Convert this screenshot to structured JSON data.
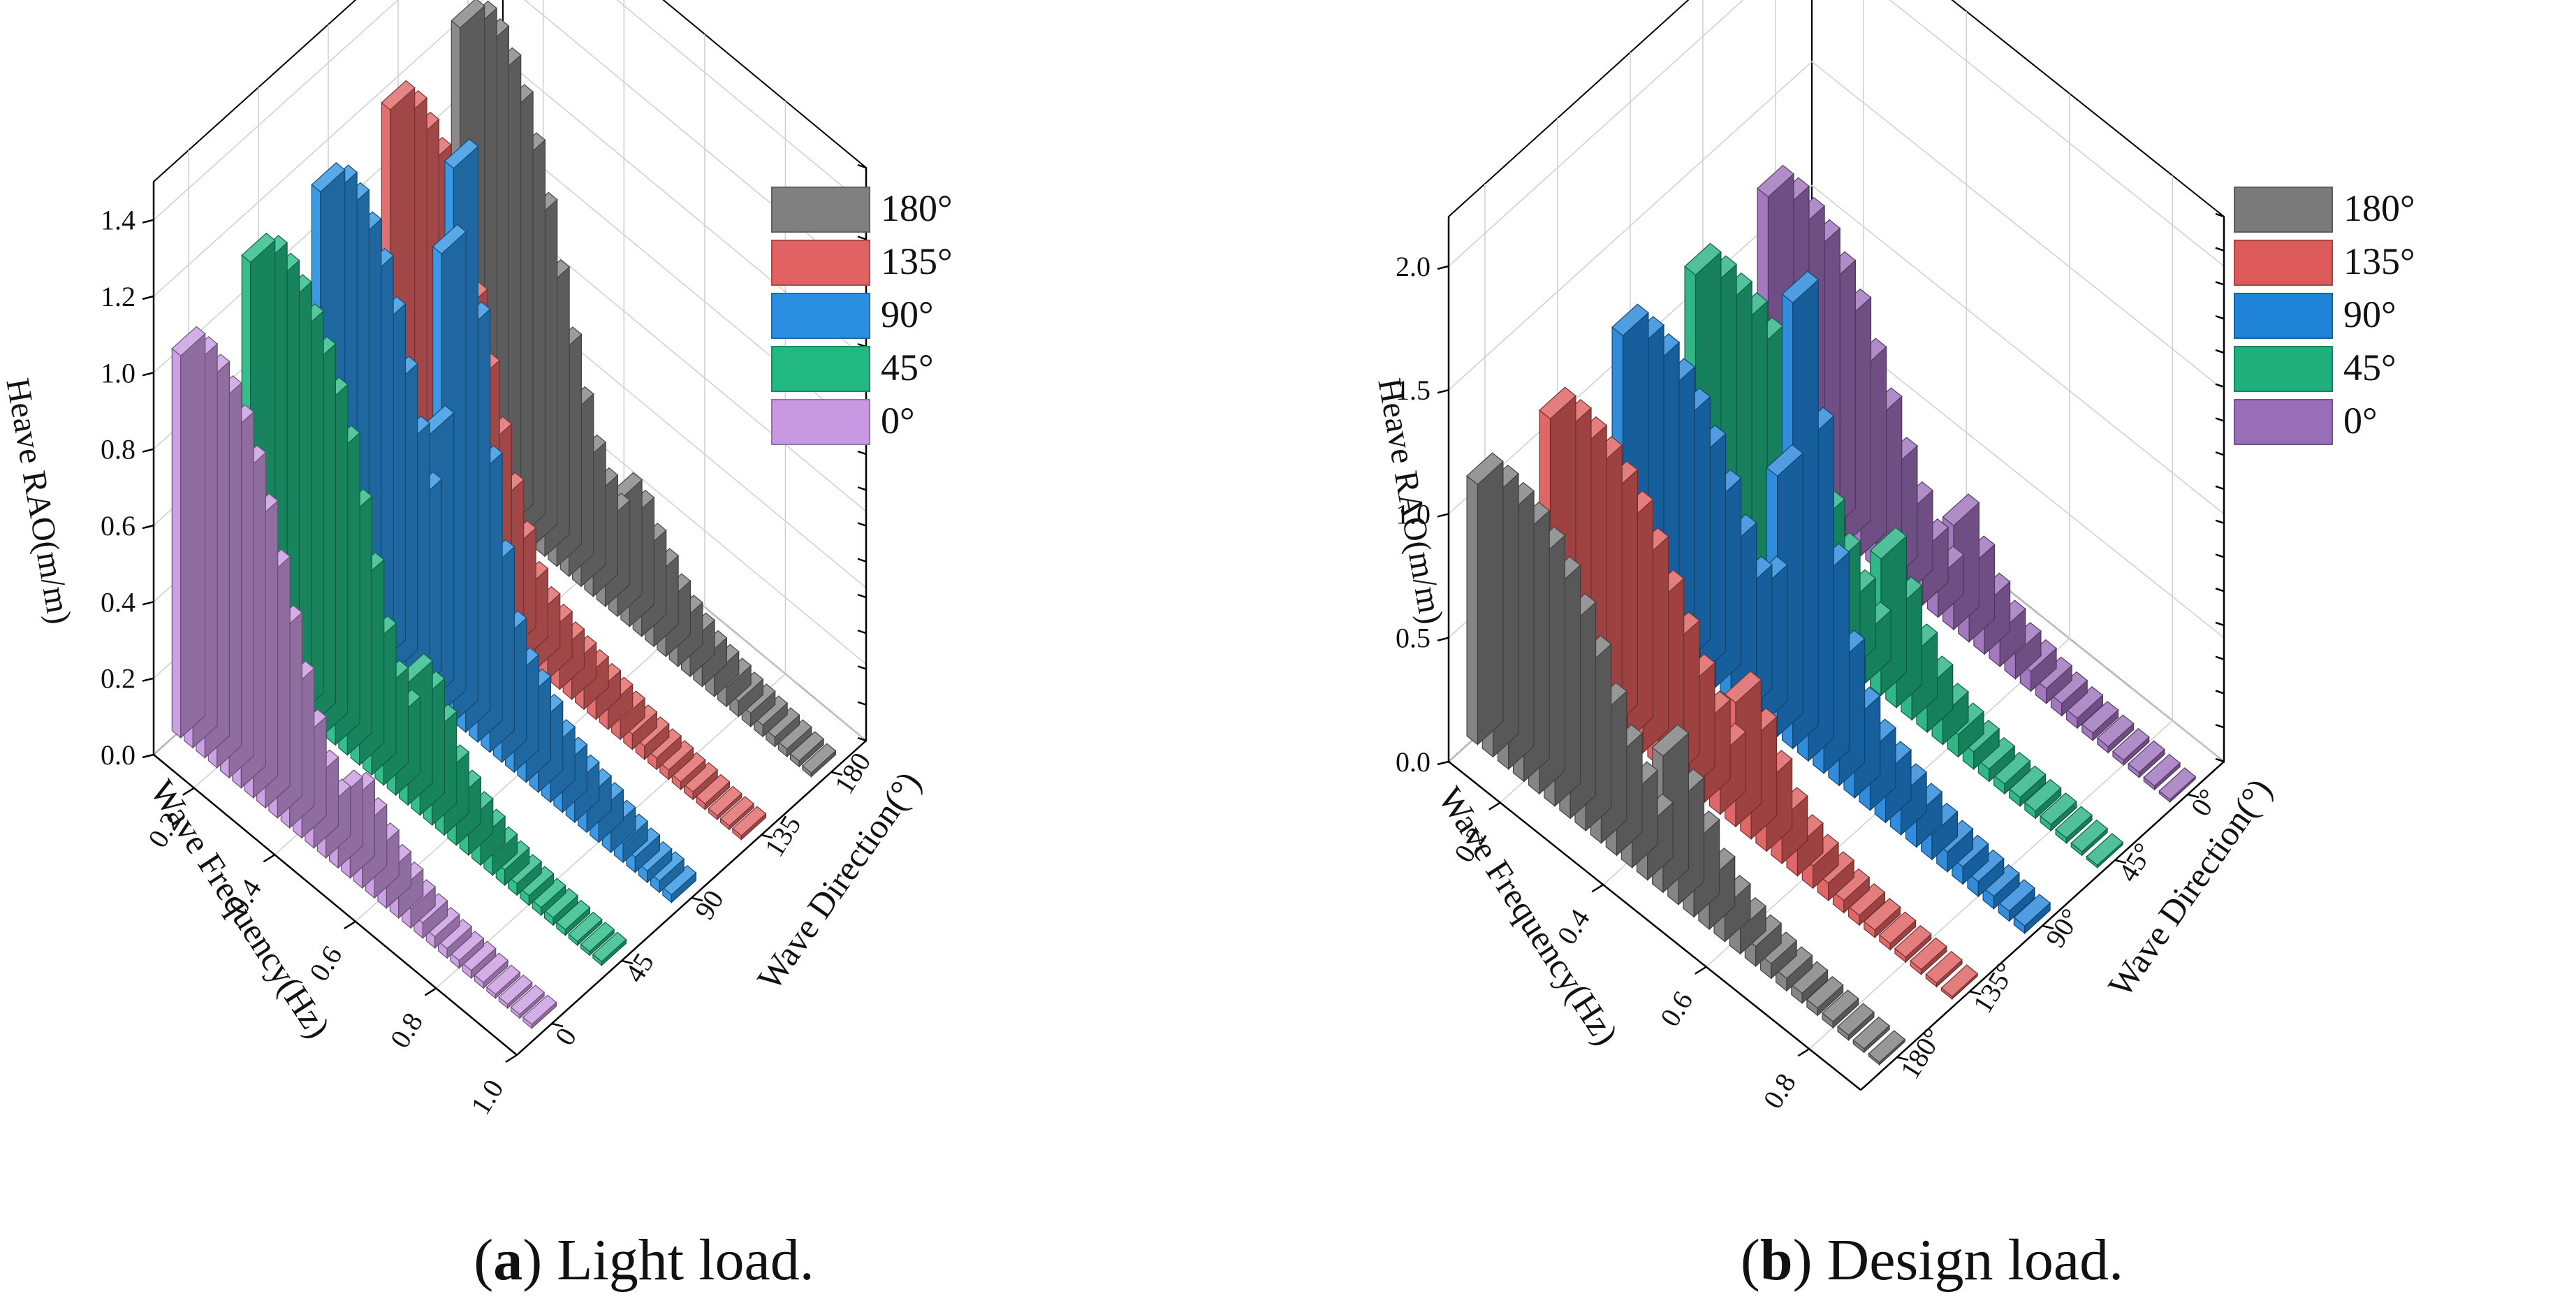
{
  "figure": {
    "panels": [
      {
        "letter": "a",
        "caption": ") Light load."
      },
      {
        "letter": "b",
        "caption": ") Design load."
      }
    ]
  },
  "chart_data": [
    {
      "type": "bar3d",
      "subtitle": "(a) Light load.",
      "xlabel": "Wave Frequency(Hz)",
      "ylabel": "Wave Direction(°)",
      "zlabel": "Heave RAO(m/m)",
      "x_ticks": [
        "0.2",
        "0.4",
        "0.6",
        "0.8",
        "1.0"
      ],
      "x_range": [
        0.1,
        1.0
      ],
      "y_ticks": [
        "0",
        "45",
        "90",
        "135",
        "180"
      ],
      "z_ticks": [
        "0.0",
        "0.2",
        "0.4",
        "0.6",
        "0.8",
        "1.0",
        "1.2",
        "1.4"
      ],
      "zlim": [
        0,
        1.5
      ],
      "frequencies": [
        0.1,
        0.13,
        0.16,
        0.19,
        0.22,
        0.25,
        0.28,
        0.31,
        0.34,
        0.37,
        0.4,
        0.43,
        0.46,
        0.49,
        0.52,
        0.55,
        0.58,
        0.61,
        0.64,
        0.67,
        0.7,
        0.73,
        0.76,
        0.79,
        0.82,
        0.85,
        0.88,
        0.91,
        0.94,
        0.97
      ],
      "legend": [
        "180°",
        "135°",
        "90°",
        "45°",
        "0°"
      ],
      "series": [
        {
          "name": "0°",
          "direction": 0,
          "color": "#c898e0",
          "values": [
            1.0,
            1.0,
            0.98,
            0.95,
            0.9,
            0.82,
            0.72,
            0.6,
            0.48,
            0.36,
            0.26,
            0.18,
            0.13,
            0.18,
            0.2,
            0.16,
            0.12,
            0.09,
            0.07,
            0.05,
            0.04,
            0.03,
            0.025,
            0.02,
            0.02,
            0.015,
            0.01,
            0.01,
            0.01,
            0.01
          ]
        },
        {
          "name": "45°",
          "direction": 45,
          "color": "#22b882",
          "values": [
            1.08,
            1.1,
            1.08,
            1.05,
            1.0,
            0.94,
            0.86,
            0.76,
            0.62,
            0.48,
            0.34,
            0.25,
            0.2,
            0.32,
            0.3,
            0.24,
            0.16,
            0.12,
            0.09,
            0.07,
            0.05,
            0.04,
            0.03,
            0.025,
            0.02,
            0.02,
            0.015,
            0.01,
            0.01,
            0.01
          ]
        },
        {
          "name": "90°",
          "direction": 90,
          "color": "#2a8fe0",
          "values": [
            1.1,
            1.12,
            1.1,
            1.05,
            0.98,
            0.88,
            0.75,
            0.62,
            0.5,
            0.7,
            1.2,
            1.45,
            1.05,
            0.7,
            0.48,
            0.32,
            0.25,
            0.22,
            0.18,
            0.14,
            0.12,
            0.1,
            0.09,
            0.08,
            0.06,
            0.05,
            0.04,
            0.03,
            0.03,
            0.02
          ]
        },
        {
          "name": "135°",
          "direction": 135,
          "color": "#e06262",
          "values": [
            1.15,
            1.15,
            1.12,
            1.08,
            1.0,
            0.9,
            0.78,
            0.62,
            0.48,
            0.36,
            0.26,
            0.18,
            0.14,
            0.12,
            0.1,
            0.09,
            0.08,
            0.07,
            0.06,
            0.05,
            0.04,
            0.035,
            0.03,
            0.025,
            0.02,
            0.02,
            0.015,
            0.01,
            0.01,
            0.01
          ]
        },
        {
          "name": "180°",
          "direction": 180,
          "color": "#808080",
          "values": [
            1.2,
            1.22,
            1.2,
            1.15,
            1.08,
            0.98,
            0.85,
            0.7,
            0.55,
            0.42,
            0.32,
            0.26,
            0.22,
            0.3,
            0.28,
            0.22,
            0.18,
            0.14,
            0.11,
            0.09,
            0.07,
            0.06,
            0.05,
            0.04,
            0.035,
            0.03,
            0.025,
            0.02,
            0.015,
            0.01
          ]
        }
      ]
    },
    {
      "type": "bar3d",
      "subtitle": "(b) Design load.",
      "xlabel": "Wave Frequency(Hz)",
      "ylabel": "Wave Direction(°)",
      "zlabel": "Heave RAO(m/m)",
      "x_ticks": [
        "0.2",
        "0.4",
        "0.6",
        "0.8"
      ],
      "x_range": [
        0.1,
        0.9
      ],
      "y_ticks": [
        "0°",
        "45°",
        "90°",
        "135°",
        "180°"
      ],
      "z_ticks": [
        "0.0",
        "0.5",
        "1.0",
        "1.5",
        "2.0"
      ],
      "zlim": [
        0,
        2.2
      ],
      "frequencies": [
        0.1,
        0.13,
        0.16,
        0.19,
        0.22,
        0.25,
        0.28,
        0.31,
        0.34,
        0.37,
        0.4,
        0.43,
        0.46,
        0.49,
        0.52,
        0.55,
        0.58,
        0.61,
        0.64,
        0.67,
        0.7,
        0.73,
        0.76,
        0.79,
        0.82,
        0.85,
        0.88
      ],
      "legend": [
        "180°",
        "135°",
        "90°",
        "45°",
        "0°"
      ],
      "series": [
        {
          "name": "0°",
          "direction": 0,
          "color": "#9a6db8",
          "values": [
            1.15,
            1.15,
            1.12,
            1.08,
            1.0,
            0.9,
            0.75,
            0.6,
            0.45,
            0.32,
            0.22,
            0.16,
            0.42,
            0.3,
            0.2,
            0.14,
            0.1,
            0.08,
            0.06,
            0.05,
            0.04,
            0.03,
            0.025,
            0.02,
            0.02,
            0.015,
            0.01
          ]
        },
        {
          "name": "45°",
          "direction": 45,
          "color": "#1fb07e",
          "values": [
            1.1,
            1.1,
            1.08,
            1.05,
            1.0,
            0.92,
            0.8,
            0.65,
            0.5,
            0.38,
            0.28,
            0.2,
            0.55,
            0.4,
            0.26,
            0.18,
            0.12,
            0.09,
            0.07,
            0.05,
            0.04,
            0.035,
            0.03,
            0.025,
            0.02,
            0.015,
            0.01
          ]
        },
        {
          "name": "90°",
          "direction": 90,
          "color": "#1f83d8",
          "values": [
            1.12,
            1.12,
            1.1,
            1.05,
            0.98,
            0.88,
            0.75,
            0.62,
            0.5,
            0.55,
            1.05,
            1.8,
            1.3,
            0.8,
            0.5,
            0.32,
            0.24,
            0.2,
            0.16,
            0.13,
            0.1,
            0.08,
            0.07,
            0.06,
            0.05,
            0.04,
            0.03
          ]
        },
        {
          "name": "135°",
          "direction": 135,
          "color": "#dc5a5a",
          "values": [
            1.05,
            1.05,
            1.03,
            1.0,
            0.95,
            0.88,
            0.78,
            0.66,
            0.54,
            0.42,
            0.32,
            0.24,
            0.5,
            0.4,
            0.28,
            0.18,
            0.12,
            0.09,
            0.07,
            0.05,
            0.04,
            0.03,
            0.025,
            0.02,
            0.02,
            0.015,
            0.01
          ]
        },
        {
          "name": "180°",
          "direction": 180,
          "color": "#7a7a7a",
          "values": [
            1.05,
            1.05,
            1.03,
            1.0,
            0.95,
            0.88,
            0.78,
            0.66,
            0.52,
            0.4,
            0.3,
            0.22,
            0.55,
            0.42,
            0.3,
            0.2,
            0.14,
            0.1,
            0.08,
            0.06,
            0.05,
            0.04,
            0.03,
            0.025,
            0.02,
            0.015,
            0.01
          ]
        }
      ]
    }
  ]
}
